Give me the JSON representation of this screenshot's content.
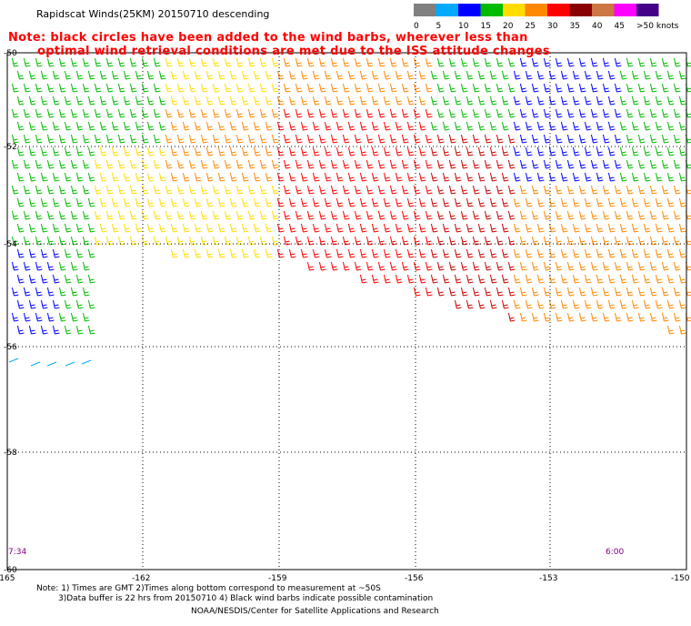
{
  "title": "Rapidscat Winds(25KM) 20150710 descending",
  "note_lines": [
    "Note: black circles have been added to the wind barbs, wherever less than",
    "optimal wind retrieval conditions are met due to the ISS attitude changes"
  ],
  "legend": {
    "labels": [
      "0",
      "5",
      "10",
      "15",
      "20",
      "25",
      "30",
      "35",
      "40",
      "45",
      ">50 knots"
    ],
    "colors": [
      "#808080",
      "#00aaff",
      "#0000ff",
      "#00bb00",
      "#ffdd00",
      "#ff8800",
      "#ff0000",
      "#880000",
      "#cc7744",
      "#ff00ff",
      "#440088"
    ]
  },
  "axes": {
    "lat_labels": [
      "-50",
      "-52",
      "-54",
      "-56",
      "-58",
      "-60"
    ],
    "lon_labels": [
      "-165",
      "-162",
      "-159",
      "-156",
      "-153",
      "-150"
    ]
  },
  "times": {
    "left": "7:34",
    "right": "6:00"
  },
  "footer": {
    "line1": "Note: 1) Times are GMT 2)Times along bottom correspond to measurement at ~50S",
    "line2": "3)Data buffer is 22 hrs from 20150710 4) Black wind barbs indicate possible contamination",
    "line3": "NOAA/NESDIS/Center for Satellite Applications and Research"
  },
  "colors": {
    "grid": "#000000",
    "note": "#ff0000",
    "time": "#800080"
  }
}
